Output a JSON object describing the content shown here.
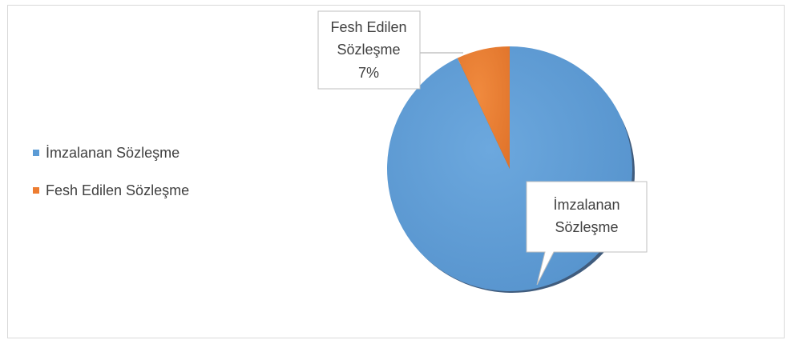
{
  "chart_data": {
    "type": "pie",
    "title": "",
    "categories": [
      "İmzalanan Sözleşme",
      "Fesh Edilen Sözleşme"
    ],
    "values": [
      93,
      7
    ],
    "colors": [
      "#5B9BD5",
      "#ED7D31"
    ],
    "legend_position": "left",
    "data_labels": [
      {
        "line1": "İmzalanan",
        "line2": "Sözleşme",
        "value": ""
      },
      {
        "line1": "Fesh Edilen",
        "line2": "Sözleşme",
        "value": "7%"
      }
    ]
  }
}
